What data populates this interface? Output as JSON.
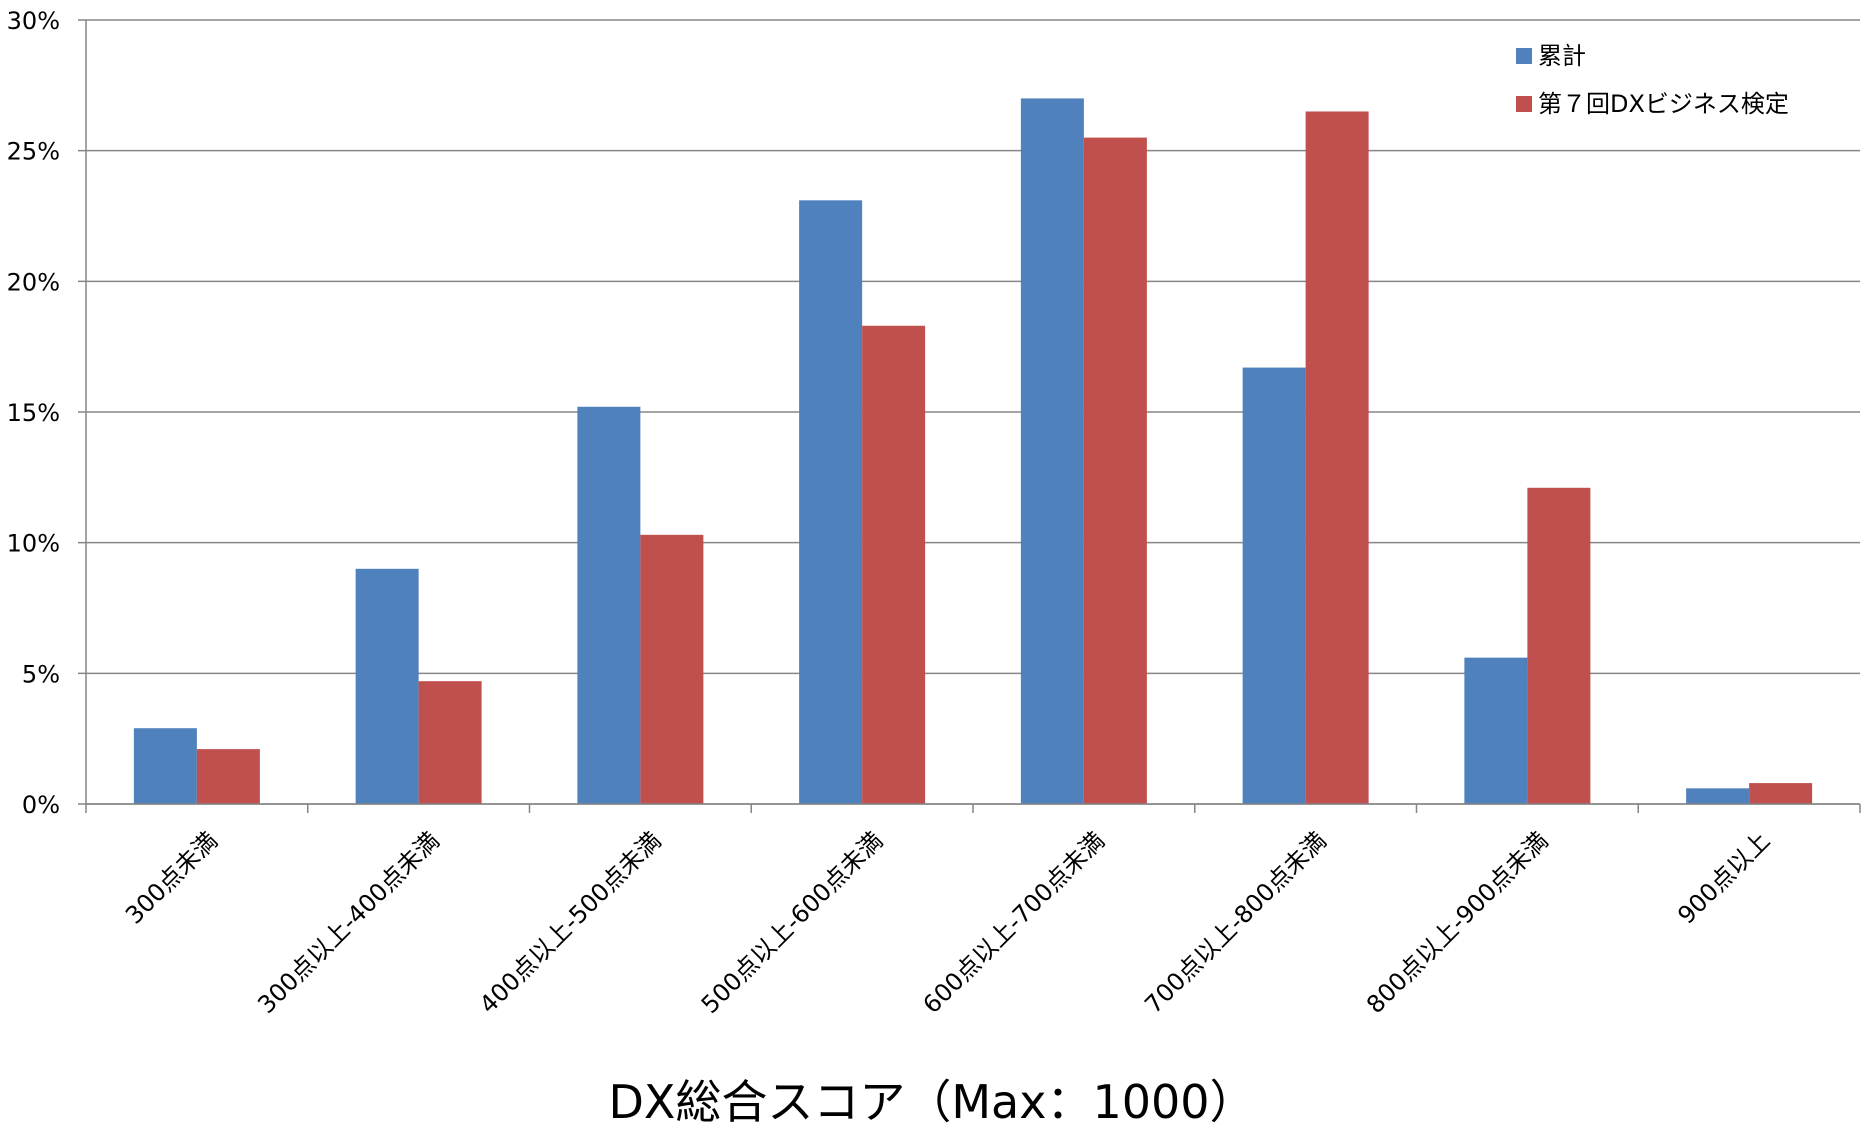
{
  "chart_data": {
    "type": "bar",
    "categories": [
      "300点未満",
      "300点以上-400点未満",
      "400点以上-500点未満",
      "500点以上-600点未満",
      "600点以上-700点未満",
      "700点以上-800点未満",
      "800点以上-900点未満",
      "900点以上"
    ],
    "series": [
      {
        "name": "累計",
        "color": "#4F81BD",
        "values": [
          2.9,
          9.0,
          15.2,
          23.1,
          27.0,
          16.7,
          5.6,
          0.6
        ]
      },
      {
        "name": "第７回DXビジネス検定",
        "color": "#C0504D",
        "values": [
          2.1,
          4.7,
          10.3,
          18.3,
          25.5,
          26.5,
          12.1,
          0.8
        ]
      }
    ],
    "title": "",
    "xlabel": "DX総合スコア（Max：1000）",
    "ylabel": "",
    "ylim": [
      0,
      30
    ],
    "yticks": [
      0,
      5,
      10,
      15,
      20,
      25,
      30
    ],
    "ytick_labels": [
      "0%",
      "5%",
      "10%",
      "15%",
      "20%",
      "25%",
      "30%"
    ],
    "grid": true,
    "legend_position": "top-right",
    "gridline_color": "#868686"
  }
}
